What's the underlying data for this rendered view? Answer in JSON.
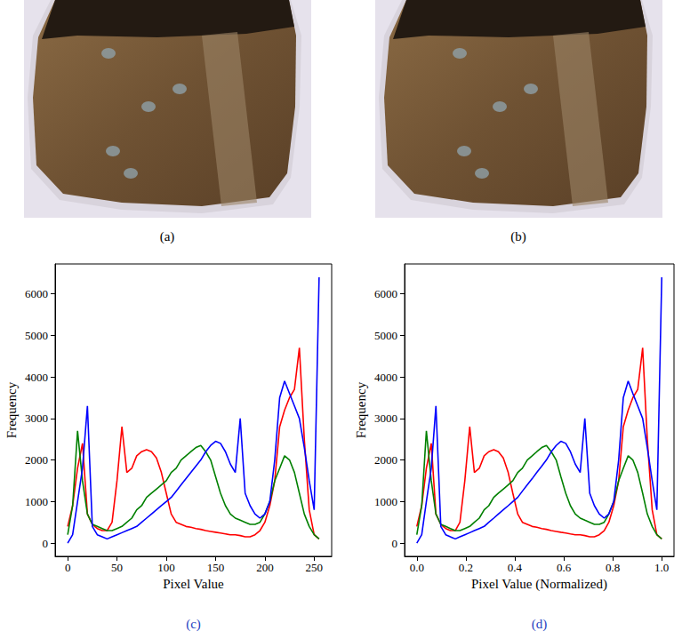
{
  "images": [
    {
      "caption": "(a)"
    },
    {
      "caption": "(b)"
    }
  ],
  "chart_data": [
    {
      "type": "line",
      "caption": "(c)",
      "x_label": "Pixel Value",
      "y_label": "Frequency",
      "x": [
        0,
        5,
        10,
        15,
        20,
        25,
        30,
        35,
        40,
        45,
        50,
        55,
        60,
        65,
        70,
        75,
        80,
        85,
        90,
        95,
        100,
        105,
        110,
        115,
        120,
        125,
        130,
        135,
        140,
        145,
        150,
        155,
        160,
        165,
        170,
        175,
        180,
        185,
        190,
        195,
        200,
        205,
        210,
        215,
        220,
        225,
        230,
        235,
        240,
        245,
        250,
        255
      ],
      "series": [
        {
          "color": "#ff0000",
          "values": [
            400,
            900,
            1800,
            2400,
            700,
            450,
            350,
            300,
            300,
            500,
            1500,
            2800,
            1700,
            1800,
            2100,
            2200,
            2250,
            2200,
            2050,
            1700,
            1200,
            700,
            500,
            450,
            400,
            380,
            350,
            330,
            300,
            280,
            260,
            240,
            220,
            200,
            200,
            180,
            150,
            150,
            200,
            300,
            500,
            900,
            1500,
            2800,
            3200,
            3500,
            3700,
            4700,
            2500,
            800,
            200,
            100
          ]
        },
        {
          "color": "#008000",
          "values": [
            200,
            900,
            2700,
            1500,
            700,
            450,
            400,
            350,
            300,
            300,
            350,
            400,
            500,
            600,
            800,
            900,
            1100,
            1200,
            1300,
            1400,
            1500,
            1700,
            1800,
            2000,
            2100,
            2200,
            2300,
            2350,
            2200,
            2000,
            1600,
            1200,
            900,
            700,
            600,
            550,
            500,
            450,
            450,
            500,
            700,
            1000,
            1500,
            1800,
            2100,
            2000,
            1700,
            1200,
            700,
            400,
            200,
            100
          ]
        },
        {
          "color": "#0000ff",
          "values": [
            0,
            200,
            1000,
            1800,
            3300,
            400,
            200,
            150,
            100,
            150,
            200,
            250,
            300,
            350,
            400,
            500,
            600,
            700,
            800,
            900,
            1000,
            1100,
            1250,
            1400,
            1550,
            1700,
            1850,
            2000,
            2200,
            2350,
            2450,
            2400,
            2200,
            1900,
            1700,
            3000,
            1200,
            900,
            700,
            600,
            700,
            1000,
            2000,
            3500,
            3900,
            3600,
            3300,
            3000,
            2300,
            1500,
            800,
            6400
          ]
        }
      ],
      "xlim": [
        -12.75,
        267.75
      ],
      "ylim": [
        -320,
        6720
      ],
      "xticks": [
        0,
        50,
        100,
        150,
        200,
        250
      ],
      "yticks": [
        0,
        1000,
        2000,
        3000,
        4000,
        5000,
        6000
      ],
      "grid": false
    },
    {
      "type": "line",
      "caption": "(d)",
      "x_label": "Pixel Value (Normalized)",
      "y_label": "Frequency",
      "x": [
        0,
        0.02,
        0.039,
        0.059,
        0.078,
        0.098,
        0.118,
        0.137,
        0.157,
        0.176,
        0.196,
        0.216,
        0.235,
        0.255,
        0.275,
        0.294,
        0.314,
        0.333,
        0.353,
        0.373,
        0.392,
        0.412,
        0.431,
        0.451,
        0.471,
        0.49,
        0.51,
        0.529,
        0.549,
        0.569,
        0.588,
        0.608,
        0.627,
        0.647,
        0.667,
        0.686,
        0.706,
        0.725,
        0.745,
        0.765,
        0.784,
        0.804,
        0.824,
        0.843,
        0.863,
        0.882,
        0.902,
        0.922,
        0.941,
        0.961,
        0.98,
        1.0
      ],
      "series": [
        {
          "color": "#ff0000",
          "values": [
            400,
            900,
            1800,
            2400,
            700,
            450,
            350,
            300,
            300,
            500,
            1500,
            2800,
            1700,
            1800,
            2100,
            2200,
            2250,
            2200,
            2050,
            1700,
            1200,
            700,
            500,
            450,
            400,
            380,
            350,
            330,
            300,
            280,
            260,
            240,
            220,
            200,
            200,
            180,
            150,
            150,
            200,
            300,
            500,
            900,
            1500,
            2800,
            3200,
            3500,
            3700,
            4700,
            2500,
            800,
            200,
            100
          ]
        },
        {
          "color": "#008000",
          "values": [
            200,
            900,
            2700,
            1500,
            700,
            450,
            400,
            350,
            300,
            300,
            350,
            400,
            500,
            600,
            800,
            900,
            1100,
            1200,
            1300,
            1400,
            1500,
            1700,
            1800,
            2000,
            2100,
            2200,
            2300,
            2350,
            2200,
            2000,
            1600,
            1200,
            900,
            700,
            600,
            550,
            500,
            450,
            450,
            500,
            700,
            1000,
            1500,
            1800,
            2100,
            2000,
            1700,
            1200,
            700,
            400,
            200,
            100
          ]
        },
        {
          "color": "#0000ff",
          "values": [
            0,
            200,
            1000,
            1800,
            3300,
            400,
            200,
            150,
            100,
            150,
            200,
            250,
            300,
            350,
            400,
            500,
            600,
            700,
            800,
            900,
            1000,
            1100,
            1250,
            1400,
            1550,
            1700,
            1850,
            2000,
            2200,
            2350,
            2450,
            2400,
            2200,
            1900,
            1700,
            3000,
            1200,
            900,
            700,
            600,
            700,
            1000,
            2000,
            3500,
            3900,
            3600,
            3300,
            3000,
            2300,
            1500,
            800,
            6400
          ]
        }
      ],
      "xlim": [
        -0.05,
        1.05
      ],
      "ylim": [
        -320,
        6720
      ],
      "xticks": [
        {
          "value": 0,
          "label": "0.0"
        },
        0.2,
        0.4,
        0.6,
        0.8,
        {
          "value": 1,
          "label": "1.0"
        }
      ],
      "yticks": [
        0,
        1000,
        2000,
        3000,
        4000,
        5000,
        6000
      ],
      "grid": false
    }
  ]
}
